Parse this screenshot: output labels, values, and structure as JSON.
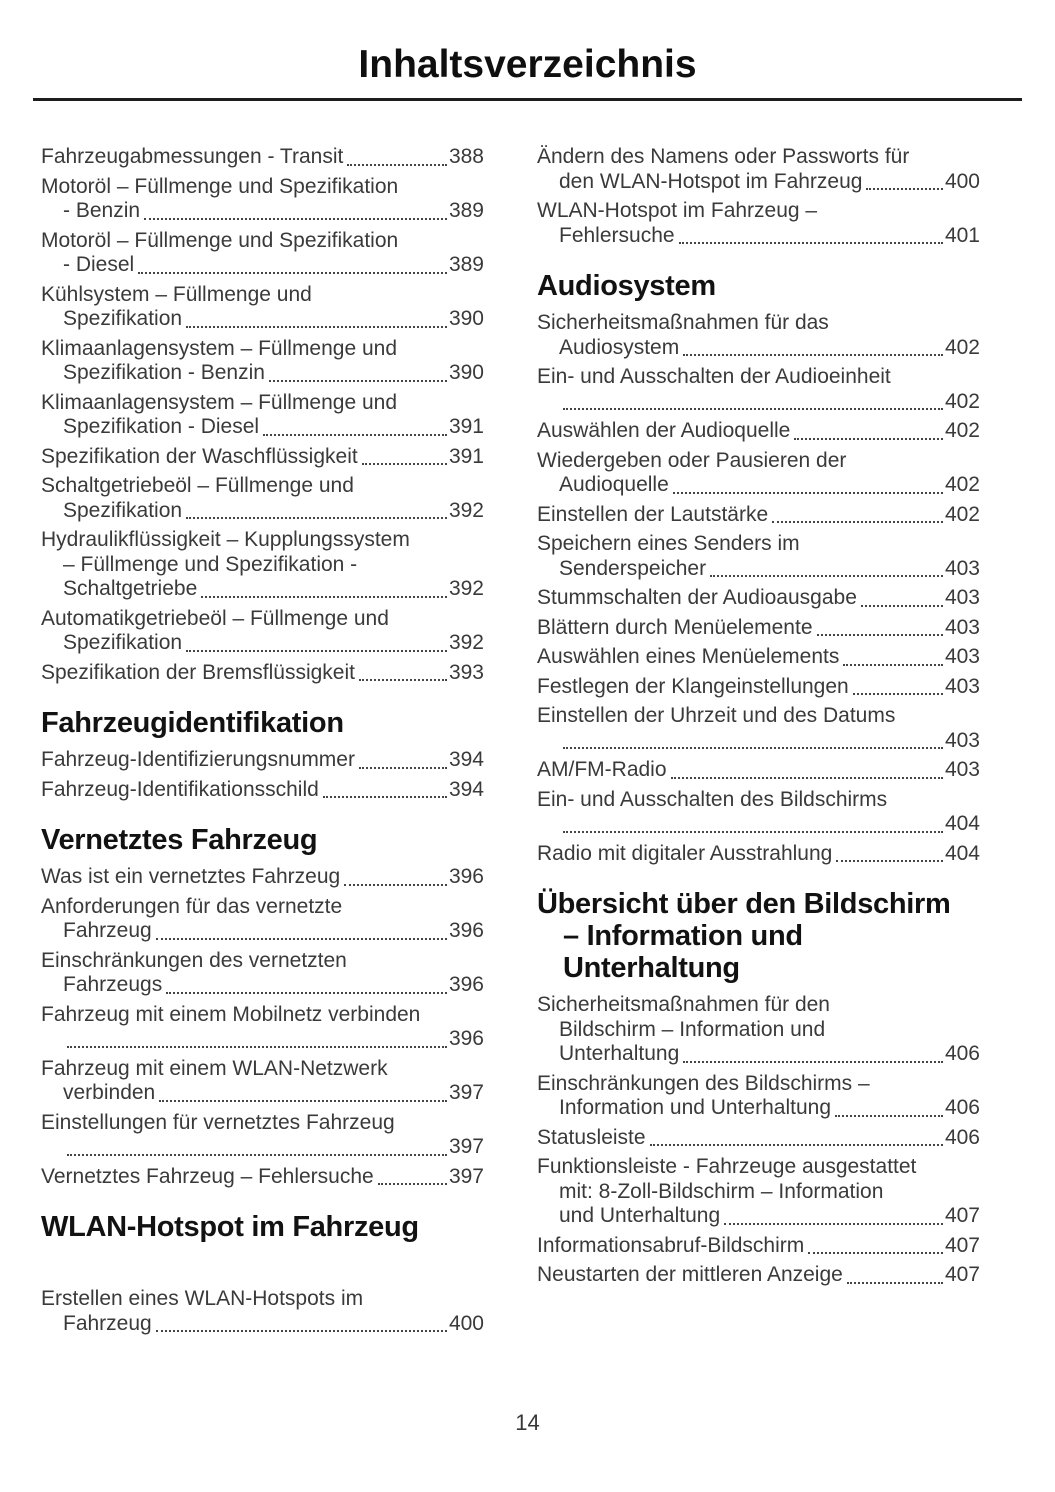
{
  "page": {
    "title": "Inhaltsverzeichnis",
    "number": "14"
  },
  "colors": {
    "body_text": "#3a3a3a",
    "heading_text": "#121212",
    "rule": "#1d1d1d",
    "background": "#ffffff"
  },
  "columns": {
    "left": [
      {
        "heading_lines": null,
        "entries": [
          {
            "lines": [
              "Fahrzeugabmessungen - Transit"
            ],
            "page": "388"
          },
          {
            "lines": [
              "Motoröl – Füllmenge und Spezifikation",
              "- Benzin"
            ],
            "page": "389"
          },
          {
            "lines": [
              "Motoröl – Füllmenge und Spezifikation",
              "- Diesel"
            ],
            "page": "389"
          },
          {
            "lines": [
              "Kühlsystem – Füllmenge und",
              "Spezifikation"
            ],
            "page": "390"
          },
          {
            "lines": [
              "Klimaanlagensystem – Füllmenge und",
              "Spezifikation - Benzin"
            ],
            "page": "390"
          },
          {
            "lines": [
              "Klimaanlagensystem – Füllmenge und",
              "Spezifikation - Diesel"
            ],
            "page": "391"
          },
          {
            "lines": [
              "Spezifikation der Waschflüssigkeit"
            ],
            "page": "391"
          },
          {
            "lines": [
              "Schaltgetriebeöl – Füllmenge und",
              "Spezifikation"
            ],
            "page": "392"
          },
          {
            "lines": [
              "Hydraulikflüssigkeit – Kupplungssystem",
              "– Füllmenge und Spezifikation -",
              "Schaltgetriebe"
            ],
            "page": "392"
          },
          {
            "lines": [
              "Automatikgetriebeöl – Füllmenge und",
              "Spezifikation"
            ],
            "page": "392"
          },
          {
            "lines": [
              "Spezifikation der Bremsflüssigkeit"
            ],
            "page": "393"
          }
        ]
      },
      {
        "heading_lines": [
          "Fahrzeugidentifikation"
        ],
        "entries": [
          {
            "lines": [
              "Fahrzeug-Identifizierungsnummer"
            ],
            "page": "394"
          },
          {
            "lines": [
              "Fahrzeug-Identifikationsschild"
            ],
            "page": "394"
          }
        ]
      },
      {
        "heading_lines": [
          "Vernetztes Fahrzeug"
        ],
        "entries": [
          {
            "lines": [
              "Was ist ein vernetztes Fahrzeug"
            ],
            "page": "396"
          },
          {
            "lines": [
              "Anforderungen für das vernetzte",
              "Fahrzeug"
            ],
            "page": "396"
          },
          {
            "lines": [
              "Einschränkungen des vernetzten",
              "Fahrzeugs"
            ],
            "page": "396"
          },
          {
            "lines": [
              "Fahrzeug mit einem Mobilnetz verbinden",
              ""
            ],
            "page": "396"
          },
          {
            "lines": [
              "Fahrzeug mit einem WLAN-Netzwerk",
              "verbinden"
            ],
            "page": "397"
          },
          {
            "lines": [
              "Einstellungen für vernetztes Fahrzeug",
              ""
            ],
            "page": "397"
          },
          {
            "lines": [
              "Vernetztes Fahrzeug – Fehlersuche"
            ],
            "page": "397"
          }
        ]
      },
      {
        "heading_lines": [
          "WLAN-Hotspot im Fahrzeug"
        ],
        "extra_gap": true,
        "entries": [
          {
            "lines": [
              "Erstellen eines WLAN-Hotspots im",
              "Fahrzeug"
            ],
            "page": "400"
          }
        ]
      }
    ],
    "right": [
      {
        "heading_lines": null,
        "entries": [
          {
            "lines": [
              "Ändern des Namens oder Passworts für",
              "den WLAN-Hotspot im Fahrzeug"
            ],
            "page": "400"
          },
          {
            "lines": [
              "WLAN-Hotspot im Fahrzeug –",
              "Fehlersuche"
            ],
            "page": "401"
          }
        ]
      },
      {
        "heading_lines": [
          "Audiosystem"
        ],
        "entries": [
          {
            "lines": [
              "Sicherheitsmaßnahmen für das",
              "Audiosystem"
            ],
            "page": "402"
          },
          {
            "lines": [
              "Ein- und Ausschalten der Audioeinheit",
              ""
            ],
            "page": "402"
          },
          {
            "lines": [
              "Auswählen der Audioquelle"
            ],
            "page": "402"
          },
          {
            "lines": [
              "Wiedergeben oder Pausieren der",
              "Audioquelle"
            ],
            "page": "402"
          },
          {
            "lines": [
              "Einstellen der Lautstärke"
            ],
            "page": "402"
          },
          {
            "lines": [
              "Speichern eines Senders im",
              "Senderspeicher"
            ],
            "page": "403"
          },
          {
            "lines": [
              "Stummschalten der Audioausgabe"
            ],
            "page": "403"
          },
          {
            "lines": [
              "Blättern durch Menüelemente"
            ],
            "page": "403"
          },
          {
            "lines": [
              "Auswählen eines Menüelements"
            ],
            "page": "403"
          },
          {
            "lines": [
              "Festlegen der Klangeinstellungen"
            ],
            "page": "403"
          },
          {
            "lines": [
              "Einstellen der Uhrzeit und des Datums",
              ""
            ],
            "page": "403"
          },
          {
            "lines": [
              "AM/FM-Radio"
            ],
            "page": "403"
          },
          {
            "lines": [
              "Ein- und Ausschalten des Bildschirms",
              ""
            ],
            "page": "404"
          },
          {
            "lines": [
              "Radio mit digitaler Ausstrahlung"
            ],
            "page": "404"
          }
        ]
      },
      {
        "heading_lines": [
          "Übersicht über den Bildschirm",
          "– Information und",
          "Unterhaltung"
        ],
        "entries": [
          {
            "lines": [
              "Sicherheitsmaßnahmen für den",
              "Bildschirm – Information und",
              "Unterhaltung"
            ],
            "page": "406"
          },
          {
            "lines": [
              "Einschränkungen des Bildschirms –",
              "Information und Unterhaltung"
            ],
            "page": "406"
          },
          {
            "lines": [
              "Statusleiste"
            ],
            "page": "406"
          },
          {
            "lines": [
              "Funktionsleiste - Fahrzeuge ausgestattet",
              "mit: 8-Zoll-Bildschirm – Information",
              "und Unterhaltung"
            ],
            "page": "407"
          },
          {
            "lines": [
              "Informationsabruf-Bildschirm"
            ],
            "page": "407"
          },
          {
            "lines": [
              "Neustarten der mittleren Anzeige"
            ],
            "page": "407"
          }
        ]
      }
    ]
  }
}
